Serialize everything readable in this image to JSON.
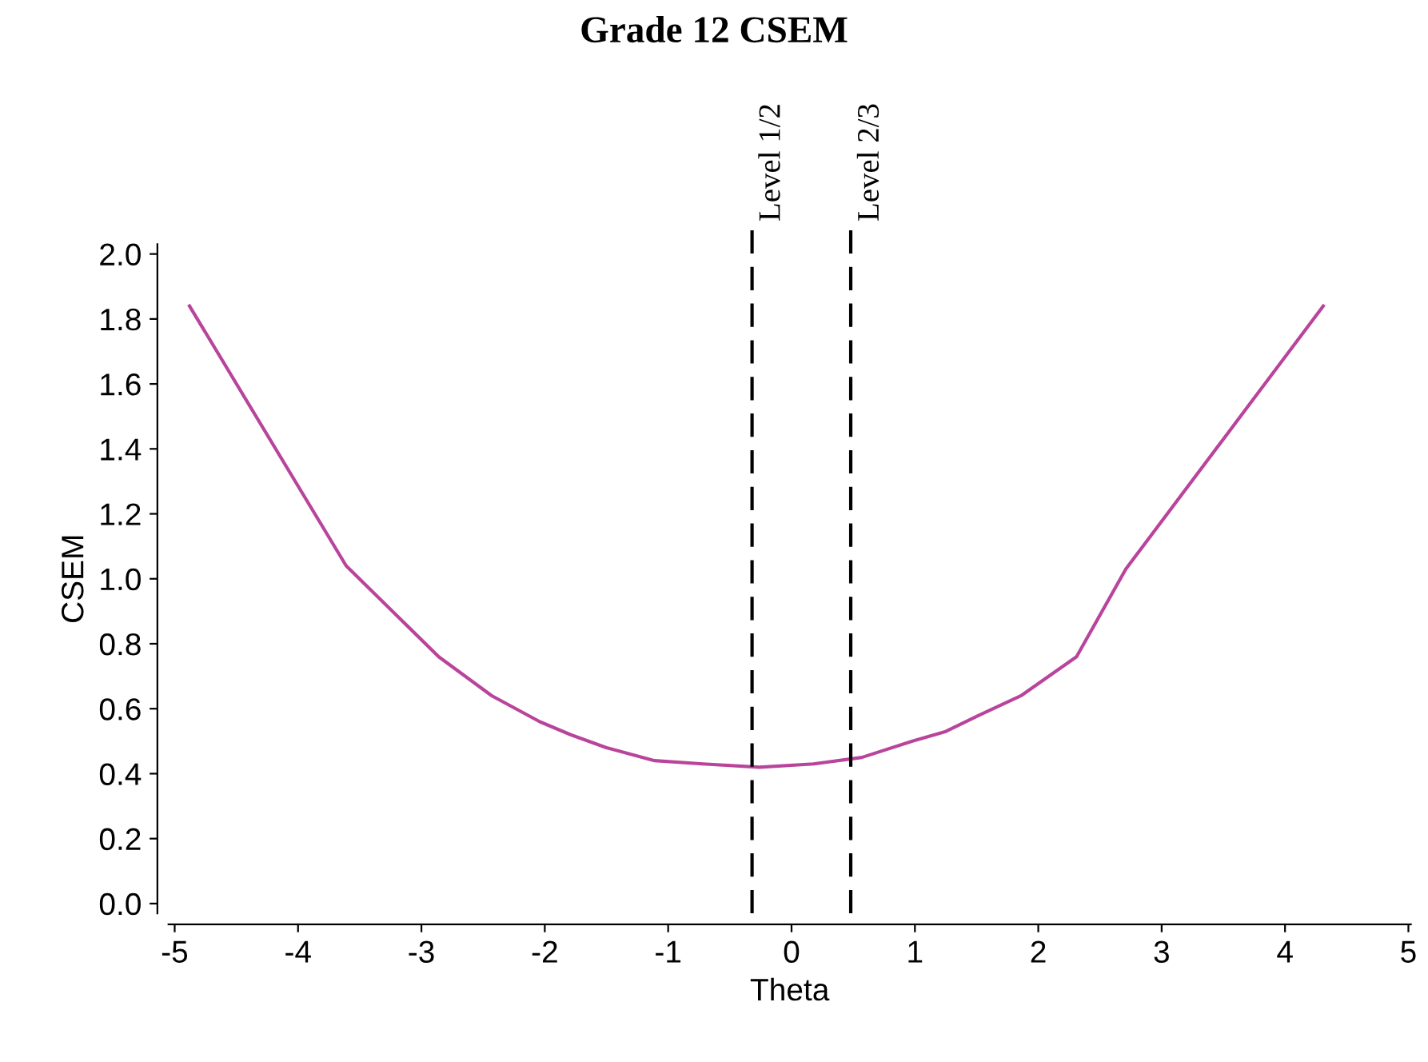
{
  "chart_data": {
    "type": "line",
    "title": "Grade 12 CSEM",
    "xlabel": "Theta",
    "ylabel": "CSEM",
    "x": [
      -4.88,
      -3.61,
      -2.86,
      -2.43,
      -2.04,
      -1.79,
      -1.5,
      -1.11,
      -0.72,
      -0.26,
      0.18,
      0.57,
      0.98,
      1.25,
      1.52,
      1.86,
      2.31,
      2.71,
      4.31
    ],
    "series": [
      {
        "color": "#b9449c",
        "values": [
          1.84,
          1.04,
          0.76,
          0.64,
          0.56,
          0.52,
          0.48,
          0.44,
          0.43,
          0.42,
          0.43,
          0.45,
          0.5,
          0.53,
          0.58,
          0.64,
          0.76,
          1.03,
          1.84
        ]
      }
    ],
    "xlim": [
      -5.05,
      5.02
    ],
    "xticks": [
      {
        "value": -5,
        "label": "-5"
      },
      {
        "value": -4,
        "label": "-4"
      },
      {
        "value": -3,
        "label": "-3"
      },
      {
        "value": -2,
        "label": "-2"
      },
      {
        "value": -1,
        "label": "-1"
      },
      0,
      1,
      2,
      3,
      4,
      5
    ],
    "ylim": [
      -0.03,
      2.03
    ],
    "yticks": [
      {
        "value": 0,
        "label": "0.0"
      },
      {
        "value": 0.2,
        "label": "0.2"
      },
      {
        "value": 0.4,
        "label": "0.4"
      },
      {
        "value": 0.6,
        "label": "0.6"
      },
      {
        "value": 0.8,
        "label": "0.8"
      },
      {
        "value": 1,
        "label": "1.0"
      },
      {
        "value": 1.2,
        "label": "1.2"
      },
      {
        "value": 1.4,
        "label": "1.4"
      },
      {
        "value": 1.6,
        "label": "1.6"
      },
      {
        "value": 1.8,
        "label": "1.8"
      },
      {
        "value": 2,
        "label": "2.0"
      }
    ],
    "ref_lines": [
      {
        "axis": "x",
        "value": -0.32,
        "label": "Level 1/2",
        "color": "#000000",
        "line_style": "dashed"
      },
      {
        "axis": "x",
        "value": 0.48,
        "label": "Level 2/3",
        "color": "#000000",
        "line_style": "dashed"
      }
    ],
    "grid": false,
    "legend": false,
    "marker": "none",
    "line_style": "solid"
  }
}
